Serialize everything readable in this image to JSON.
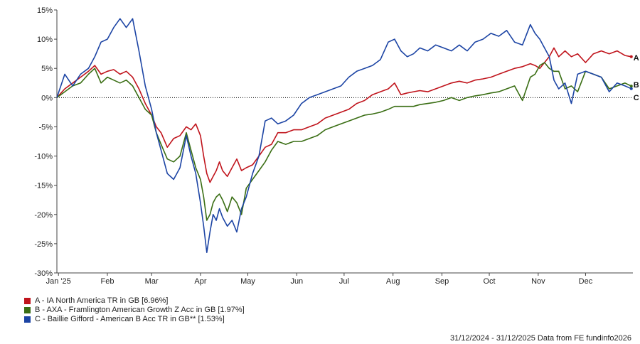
{
  "chart_data": {
    "type": "line",
    "title": "",
    "xlabel": "",
    "ylabel": "",
    "ylim": [
      -30,
      15
    ],
    "yticks": [
      15,
      10,
      5,
      0,
      -5,
      -10,
      -15,
      -20,
      -25,
      -30
    ],
    "ytick_labels": [
      "15%",
      "10%",
      "5%",
      "0%",
      "-5%",
      "-10%",
      "-15%",
      "-20%",
      "-25%",
      "-30%"
    ],
    "xlim": [
      0,
      365
    ],
    "xticks": [
      {
        "label": "Jan '25",
        "day": 1
      },
      {
        "label": "Feb",
        "day": 32
      },
      {
        "label": "Mar",
        "day": 60
      },
      {
        "label": "Apr",
        "day": 91
      },
      {
        "label": "May",
        "day": 121
      },
      {
        "label": "Jun",
        "day": 152
      },
      {
        "label": "Jul",
        "day": 182
      },
      {
        "label": "Aug",
        "day": 213
      },
      {
        "label": "Sep",
        "day": 244
      },
      {
        "label": "Oct",
        "day": 274
      },
      {
        "label": "Nov",
        "day": 305
      },
      {
        "label": "Dec",
        "day": 335
      }
    ],
    "zero_line": true,
    "series": [
      {
        "name": "A - IA North America TR in GB [6.96%]",
        "end_label": "A",
        "color": "#c0141c",
        "x": [
          0,
          5,
          10,
          15,
          20,
          24,
          28,
          32,
          36,
          40,
          44,
          48,
          52,
          56,
          60,
          63,
          66,
          70,
          74,
          78,
          82,
          85,
          88,
          91,
          93,
          95,
          97,
          99,
          101,
          103,
          105,
          108,
          111,
          114,
          117,
          120,
          124,
          128,
          132,
          136,
          140,
          145,
          150,
          155,
          160,
          165,
          170,
          175,
          180,
          185,
          190,
          195,
          200,
          205,
          210,
          214,
          218,
          222,
          226,
          230,
          235,
          240,
          245,
          250,
          255,
          260,
          265,
          270,
          275,
          280,
          285,
          290,
          295,
          300,
          303,
          306,
          309,
          312,
          315,
          318,
          322,
          326,
          330,
          335,
          340,
          345,
          350,
          355,
          360,
          364
        ],
        "y": [
          0,
          1.5,
          2.5,
          3.5,
          4.5,
          5.5,
          4.0,
          4.5,
          4.8,
          4.0,
          4.5,
          3.5,
          1.5,
          -1.0,
          -3.0,
          -5.0,
          -6.0,
          -8.5,
          -7.0,
          -6.5,
          -5.0,
          -5.5,
          -4.5,
          -6.5,
          -10.0,
          -13.0,
          -14.5,
          -13.5,
          -12.5,
          -11.0,
          -12.5,
          -13.5,
          -12.0,
          -10.5,
          -12.5,
          -12.0,
          -11.5,
          -10.0,
          -8.5,
          -8.0,
          -6.0,
          -6.0,
          -5.5,
          -5.5,
          -5.0,
          -4.5,
          -3.5,
          -3.0,
          -2.5,
          -2.0,
          -1.0,
          -0.5,
          0.5,
          1.0,
          1.5,
          2.5,
          0.5,
          0.8,
          1.0,
          1.2,
          1.0,
          1.5,
          2.0,
          2.5,
          2.8,
          2.5,
          3.0,
          3.2,
          3.5,
          4.0,
          4.5,
          5.0,
          5.3,
          5.8,
          5.5,
          5.0,
          6.0,
          7.0,
          8.5,
          7.0,
          8.0,
          7.0,
          7.5,
          6.0,
          7.5,
          8.0,
          7.5,
          8.0,
          7.2,
          7.0
        ]
      },
      {
        "name": "B - AXA - Framlington American Growth Z Acc in GB [1.97%]",
        "end_label": "B",
        "color": "#3a6e14",
        "x": [
          0,
          5,
          10,
          15,
          20,
          24,
          28,
          32,
          36,
          40,
          44,
          48,
          52,
          56,
          60,
          63,
          66,
          70,
          74,
          78,
          82,
          85,
          88,
          91,
          93,
          95,
          97,
          99,
          101,
          103,
          105,
          108,
          111,
          114,
          117,
          120,
          124,
          128,
          132,
          136,
          140,
          145,
          150,
          155,
          160,
          165,
          170,
          175,
          180,
          185,
          190,
          195,
          200,
          205,
          210,
          214,
          218,
          222,
          226,
          230,
          235,
          240,
          245,
          250,
          255,
          260,
          265,
          270,
          275,
          280,
          285,
          290,
          295,
          300,
          303,
          306,
          309,
          312,
          315,
          318,
          322,
          326,
          330,
          335,
          340,
          345,
          350,
          355,
          360,
          364
        ],
        "y": [
          0,
          1.0,
          2.0,
          2.5,
          4.0,
          5.0,
          2.5,
          3.5,
          3.0,
          2.5,
          3.0,
          2.0,
          0,
          -2.0,
          -3.0,
          -6.0,
          -8.0,
          -10.5,
          -11.0,
          -10.0,
          -6.0,
          -9.0,
          -12.0,
          -14.0,
          -17.0,
          -21.0,
          -20.0,
          -18.0,
          -17.0,
          -16.5,
          -17.5,
          -19.5,
          -17.0,
          -18.0,
          -20.0,
          -15.5,
          -14.0,
          -12.5,
          -11.0,
          -9.0,
          -7.5,
          -8.0,
          -7.5,
          -7.5,
          -7.0,
          -6.5,
          -5.5,
          -5.0,
          -4.5,
          -4.0,
          -3.5,
          -3.0,
          -2.8,
          -2.5,
          -2.0,
          -1.5,
          -1.5,
          -1.5,
          -1.5,
          -1.2,
          -1.0,
          -0.8,
          -0.5,
          0,
          -0.5,
          0,
          0.3,
          0.5,
          0.8,
          1.0,
          1.5,
          2.0,
          -0.5,
          3.5,
          4.0,
          5.5,
          6.0,
          5.0,
          4.5,
          4.5,
          1.5,
          2.0,
          1.0,
          4.5,
          4.0,
          3.5,
          1.5,
          2.0,
          2.5,
          1.97
        ]
      },
      {
        "name": "C - Baillie Gifford - American B Acc TR in GB** [1.53%]",
        "end_label": "C",
        "color": "#1c44a4",
        "x": [
          0,
          5,
          10,
          15,
          20,
          24,
          28,
          32,
          36,
          40,
          44,
          48,
          52,
          56,
          60,
          63,
          66,
          70,
          74,
          78,
          82,
          85,
          88,
          91,
          93,
          95,
          97,
          99,
          101,
          103,
          105,
          108,
          111,
          114,
          117,
          120,
          124,
          128,
          132,
          136,
          140,
          145,
          150,
          155,
          160,
          165,
          170,
          175,
          180,
          185,
          190,
          195,
          200,
          205,
          210,
          214,
          218,
          222,
          226,
          230,
          235,
          240,
          245,
          250,
          255,
          260,
          265,
          270,
          275,
          280,
          285,
          290,
          295,
          300,
          303,
          306,
          309,
          312,
          315,
          318,
          322,
          326,
          330,
          335,
          340,
          345,
          350,
          355,
          360,
          364
        ],
        "y": [
          0,
          4.0,
          2.0,
          4.0,
          5.0,
          7.0,
          9.5,
          10.0,
          12.0,
          13.5,
          12.0,
          13.5,
          8.0,
          2.0,
          -2.0,
          -6.0,
          -9.0,
          -13.0,
          -14.0,
          -12.0,
          -6.5,
          -10.0,
          -13.0,
          -18.0,
          -22.0,
          -26.5,
          -23.0,
          -20.0,
          -21.0,
          -19.0,
          -20.5,
          -22.0,
          -21.0,
          -23.0,
          -19.0,
          -17.0,
          -13.0,
          -10.0,
          -4.0,
          -3.5,
          -4.5,
          -4.0,
          -3.0,
          -1.0,
          0,
          0.5,
          1.0,
          1.5,
          2.0,
          3.5,
          4.5,
          5.0,
          5.5,
          6.5,
          9.5,
          10.0,
          8.0,
          7.0,
          7.5,
          8.5,
          8.0,
          9.0,
          8.5,
          8.0,
          9.0,
          8.0,
          9.5,
          10.0,
          11.0,
          10.5,
          11.5,
          9.5,
          9.0,
          12.5,
          11.0,
          10.0,
          8.5,
          7.0,
          3.0,
          1.5,
          2.5,
          -1.0,
          4.0,
          4.5,
          4.0,
          3.5,
          1.0,
          2.5,
          2.0,
          1.53
        ]
      }
    ]
  },
  "legend": {
    "items": [
      {
        "label": "A - IA North America TR in GB [6.96%]",
        "color": "#c0141c"
      },
      {
        "label": "B - AXA - Framlington American Growth Z Acc in GB [1.97%]",
        "color": "#3a6e14"
      },
      {
        "label": "C - Baillie Gifford - American B Acc TR in GB** [1.53%]",
        "color": "#1c44a4"
      }
    ]
  },
  "footer": {
    "text": "31/12/2024 - 31/12/2025 Data from FE fundinfo2026"
  }
}
